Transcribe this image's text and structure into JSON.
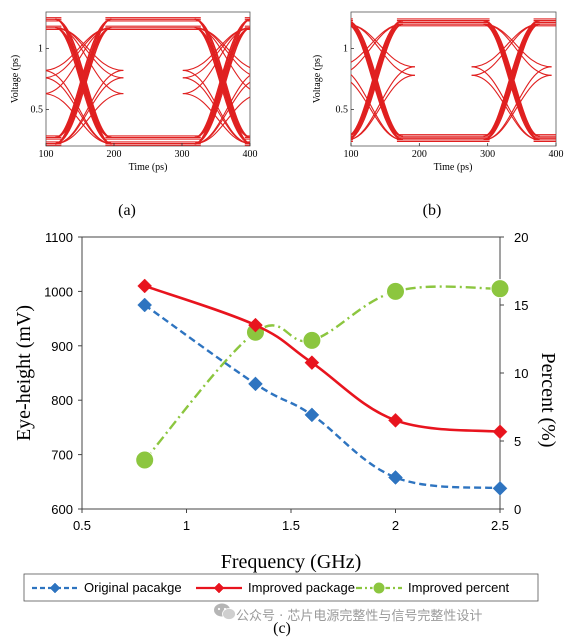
{
  "panels": {
    "a": {
      "caption": "(a)",
      "xlabel": "Time (ps)",
      "ylabel": "Voltage (ps)",
      "x_ticks": [
        "100",
        "200",
        "300",
        "400"
      ],
      "y_ticks": [
        "0.5",
        "1"
      ],
      "color": "#e02020"
    },
    "b": {
      "caption": "(b)",
      "xlabel": "Time (ps)",
      "ylabel": "Voltage (ps)",
      "x_ticks": [
        "100",
        "200",
        "300",
        "400"
      ],
      "y_ticks": [
        "0.5",
        "1"
      ],
      "color": "#e02020"
    },
    "c": {
      "caption": "(c)"
    }
  },
  "chart_data": [
    {
      "type": "line",
      "panel": "a",
      "xlabel": "Time (ps)",
      "ylabel": "Voltage (ps)",
      "xlim": [
        100,
        400
      ],
      "ylim": [
        0.2,
        1.3
      ],
      "x_ticks": [
        100,
        200,
        300,
        400
      ],
      "y_ticks": [
        0.5,
        1
      ],
      "levels_high": [
        1.24,
        1.17
      ],
      "levels_low": [
        0.27,
        0.22
      ],
      "crossings_x": [
        155,
        360
      ],
      "eye_levels": [
        0.82,
        0.76,
        0.63
      ]
    },
    {
      "type": "line",
      "panel": "b",
      "xlabel": "Time (ps)",
      "ylabel": "Voltage (ps)",
      "xlim": [
        100,
        400
      ],
      "ylim": [
        0.2,
        1.3
      ],
      "x_ticks": [
        100,
        200,
        300,
        400
      ],
      "y_ticks": [
        0.5,
        1
      ],
      "levels_high": [
        1.23,
        1.2
      ],
      "levels_low": [
        0.28,
        0.25
      ],
      "crossings_x": [
        135,
        335
      ],
      "eye_levels": [
        0.85,
        0.78
      ]
    },
    {
      "type": "line",
      "panel": "c",
      "xlabel": "Frequency (GHz)",
      "ylabel": "Eye-height (mV)",
      "y2label": "Percent (%)",
      "xlim": [
        0.5,
        2.5
      ],
      "ylim": [
        600,
        1100
      ],
      "y2lim": [
        0,
        20
      ],
      "x_ticks": [
        "0.5",
        "1",
        "1.5",
        "2",
        "2.5"
      ],
      "y_ticks": [
        "600",
        "700",
        "800",
        "900",
        "1000",
        "1100"
      ],
      "y2_ticks": [
        "0",
        "5",
        "10",
        "15",
        "20"
      ],
      "x": [
        0.8,
        1.33,
        1.6,
        2.0,
        2.5
      ],
      "series": [
        {
          "name": "Original pacakge",
          "axis": "left",
          "values": [
            975,
            830,
            773,
            658,
            638
          ],
          "color": "#2e74c0",
          "style": "dashed",
          "marker": "diamond"
        },
        {
          "name": "Improved package",
          "axis": "left",
          "values": [
            1010,
            938,
            869,
            763,
            742
          ],
          "color": "#e8141e",
          "style": "solid",
          "marker": "diamond"
        },
        {
          "name": "Improved percent",
          "axis": "right",
          "values": [
            3.6,
            13.0,
            12.4,
            16.0,
            16.2
          ],
          "color": "#8cc63f",
          "style": "dashdot",
          "marker": "circle"
        }
      ],
      "legend": "bottom"
    }
  ],
  "watermark": {
    "text": "公众号 · 芯片电源完整性与信号完整性设计"
  }
}
